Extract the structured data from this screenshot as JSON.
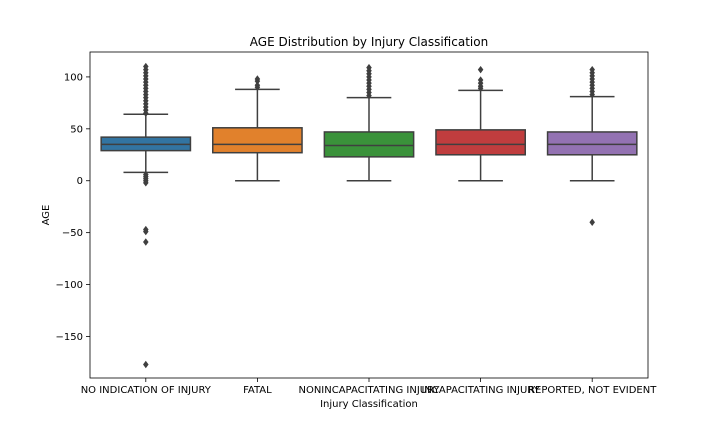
{
  "chart_data": {
    "type": "box",
    "title": "AGE Distribution by Injury Classification",
    "xlabel": "Injury Classification",
    "ylabel": "AGE",
    "ylim": [
      -190,
      124
    ],
    "yticks": [
      100,
      50,
      0,
      -50,
      -100,
      -150
    ],
    "ytick_labels": [
      "100",
      "50",
      "0",
      "−50",
      "−100",
      "−150"
    ],
    "grid": false,
    "legend": "none",
    "categories": [
      "NO INDICATION OF INJURY",
      "FATAL",
      "NONINCAPACITATING INJURY",
      "INCAPACITATING INJURY",
      "REPORTED, NOT EVIDENT"
    ],
    "colors": [
      "#3274a1",
      "#e1812c",
      "#3a923a",
      "#c03d3e",
      "#9372b2"
    ],
    "boxes": [
      {
        "whisker_low": 8,
        "q1": 29,
        "median": 35,
        "q3": 42,
        "whisker_high": 64,
        "outliers": [
          65,
          68,
          71,
          74,
          77,
          80,
          83,
          86,
          89,
          92,
          95,
          98,
          101,
          104,
          107,
          110,
          6,
          4,
          2,
          0,
          -2,
          -47,
          -49,
          -59,
          -177
        ]
      },
      {
        "whisker_low": 0,
        "q1": 27,
        "median": 35,
        "q3": 51,
        "whisker_high": 88,
        "outliers": [
          90,
          92,
          96,
          98
        ]
      },
      {
        "whisker_low": 0,
        "q1": 23,
        "median": 34,
        "q3": 47,
        "whisker_high": 80,
        "outliers": [
          82,
          85,
          88,
          91,
          94,
          97,
          100,
          103,
          106,
          109
        ]
      },
      {
        "whisker_low": 0,
        "q1": 25,
        "median": 35,
        "q3": 49,
        "whisker_high": 87,
        "outliers": [
          89,
          91,
          94,
          97,
          107
        ]
      },
      {
        "whisker_low": 0,
        "q1": 25,
        "median": 35,
        "q3": 47,
        "whisker_high": 81,
        "outliers": [
          83,
          86,
          89,
          92,
          95,
          98,
          101,
          104,
          107,
          -40
        ]
      }
    ]
  }
}
